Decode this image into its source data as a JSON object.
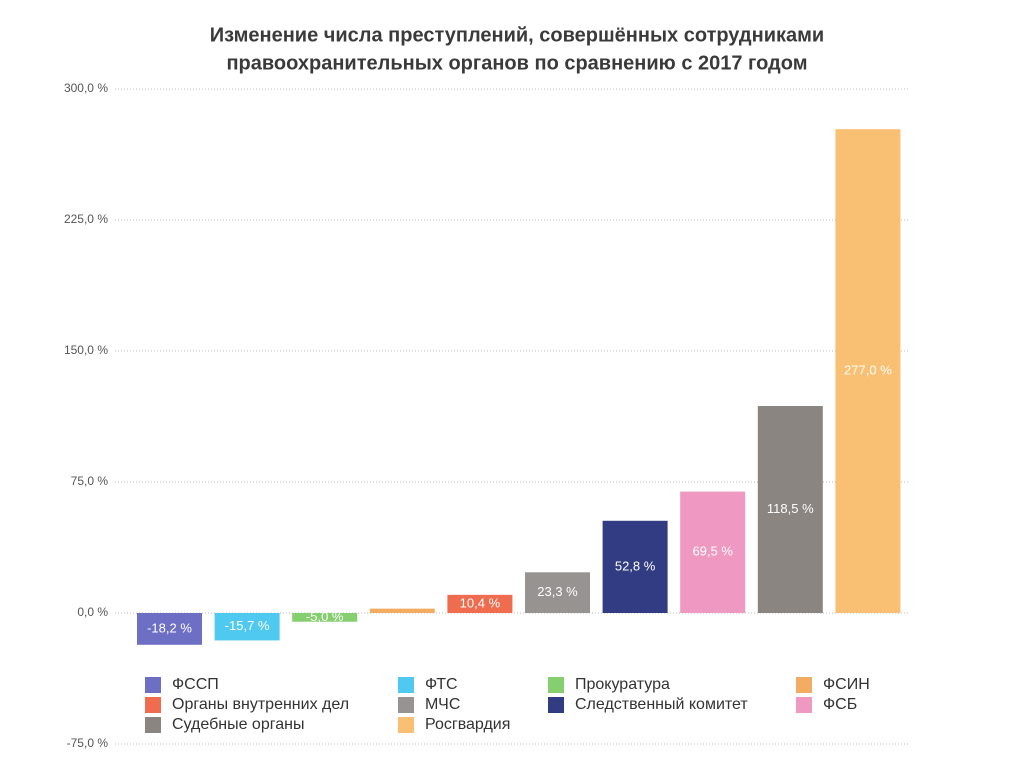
{
  "chart_data": {
    "type": "bar",
    "title": [
      "Изменение числа преступлений, совершённых сотрудниками",
      "правоохранительных органов по сравнению с 2017 годом"
    ],
    "series": [
      {
        "name": "ФССП",
        "color": "#6d6fc4",
        "values": [
          -18.2
        ],
        "value_labels": [
          "-18,2 %"
        ]
      },
      {
        "name": "ФТС",
        "color": "#4fc9ef",
        "values": [
          -15.7
        ],
        "value_labels": [
          "-15,7 %"
        ]
      },
      {
        "name": "Прокуратура",
        "color": "#86cf6f",
        "values": [
          -5.0
        ],
        "value_labels": [
          "-5,0 %"
        ]
      },
      {
        "name": "ФСИН",
        "color": "#f3ad63",
        "values": [
          2.5
        ]
      },
      {
        "name": "Органы внутренних дел",
        "color": "#ef6c4f",
        "values": [
          10.4
        ],
        "value_labels": [
          "10,4 %"
        ]
      },
      {
        "name": "МЧС",
        "color": "#979390",
        "values": [
          23.3
        ],
        "value_labels": [
          "23,3 %"
        ]
      },
      {
        "name": "Следственный комитет",
        "color": "#323c82",
        "values": [
          52.8
        ],
        "value_labels": [
          "52,8 %"
        ]
      },
      {
        "name": "ФСБ",
        "color": "#ef99c2",
        "values": [
          69.5
        ],
        "value_labels": [
          "69,5 %"
        ]
      },
      {
        "name": "Судебные органы",
        "color": "#8a8580",
        "values": [
          118.5
        ],
        "value_labels": [
          "118,5 %"
        ]
      },
      {
        "name": "Росгвардия",
        "color": "#f9bf72",
        "values": [
          277.0
        ],
        "value_labels": [
          "277,0 %"
        ]
      }
    ],
    "ylim": [
      -75,
      300
    ],
    "yticks": [
      {
        "value": -75,
        "label": "-75,0 %"
      },
      {
        "value": 0,
        "label": "0,0 %"
      },
      {
        "value": 75,
        "label": "75,0 %"
      },
      {
        "value": 150,
        "label": "150,0 %"
      },
      {
        "value": 225,
        "label": "225,0 %"
      },
      {
        "value": 300,
        "label": "300,0 %"
      }
    ],
    "grid": true
  }
}
